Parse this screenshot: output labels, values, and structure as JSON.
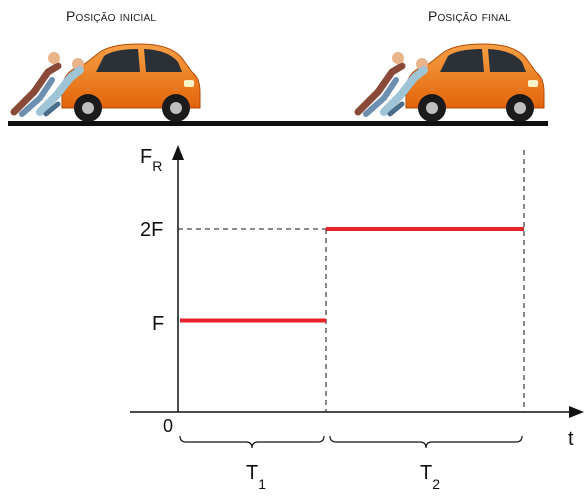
{
  "labels": {
    "initial_position": "Posição inicial",
    "final_position": "Posição final"
  },
  "graph": {
    "y_axis_symbol": "F",
    "y_axis_subscript": "R",
    "x_axis_label": "t",
    "origin_label": "0",
    "y_ticks": [
      "2F",
      "F"
    ],
    "intervals": [
      {
        "symbol": "T",
        "subscript": "1"
      },
      {
        "symbol": "T",
        "subscript": "2"
      }
    ]
  },
  "chart_data": {
    "type": "line",
    "x": [
      "0",
      "T1",
      "T1",
      "T1+T2"
    ],
    "series": [
      {
        "values": [
          1,
          1,
          2,
          2
        ]
      }
    ],
    "ylabel": "FR",
    "xlabel": "t"
  },
  "colors": {
    "force_line": "#e8212a",
    "car_body": "#f07a12",
    "ground": "#111111"
  }
}
